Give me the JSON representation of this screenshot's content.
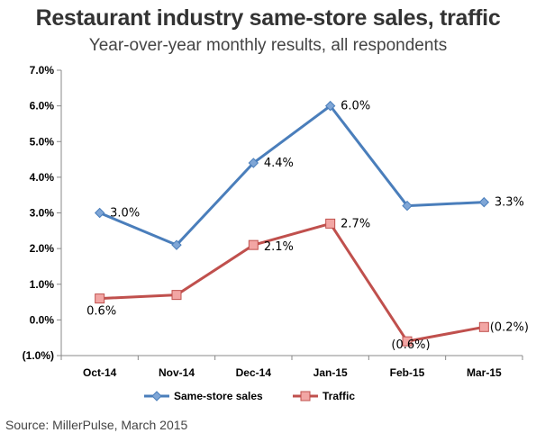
{
  "title": "Restaurant industry same-store sales, traffic",
  "subtitle": "Year-over-year monthly results, all respondents",
  "source": "Source: MillerPulse, March 2015",
  "chart_data": {
    "type": "line",
    "categories": [
      "Oct-14",
      "Nov-14",
      "Dec-14",
      "Jan-15",
      "Feb-15",
      "Mar-15"
    ],
    "ylim": [
      -1.0,
      7.0
    ],
    "y_ticks": [
      7.0,
      6.0,
      5.0,
      4.0,
      3.0,
      2.0,
      1.0,
      0.0,
      -1.0
    ],
    "y_tick_labels": [
      "7.0%",
      "6.0%",
      "5.0%",
      "4.0%",
      "3.0%",
      "2.0%",
      "1.0%",
      "0.0%",
      "(1.0%)"
    ],
    "grid": false,
    "legend_position": "bottom",
    "series": [
      {
        "name": "Same-store sales",
        "color": "#4a7ebb",
        "marker": "diamond",
        "values": [
          3.0,
          2.1,
          4.4,
          6.0,
          3.2,
          3.3
        ],
        "data_labels": [
          "3.0%",
          "",
          "4.4%",
          "6.0%",
          "",
          "3.3%"
        ]
      },
      {
        "name": "Traffic",
        "color": "#c0504d",
        "marker": "square",
        "values": [
          0.6,
          0.7,
          2.1,
          2.7,
          -0.6,
          -0.2
        ],
        "data_labels": [
          "0.6%",
          "",
          "2.1%",
          "2.7%",
          "(0.6%)",
          "(0.2%)"
        ]
      }
    ]
  }
}
